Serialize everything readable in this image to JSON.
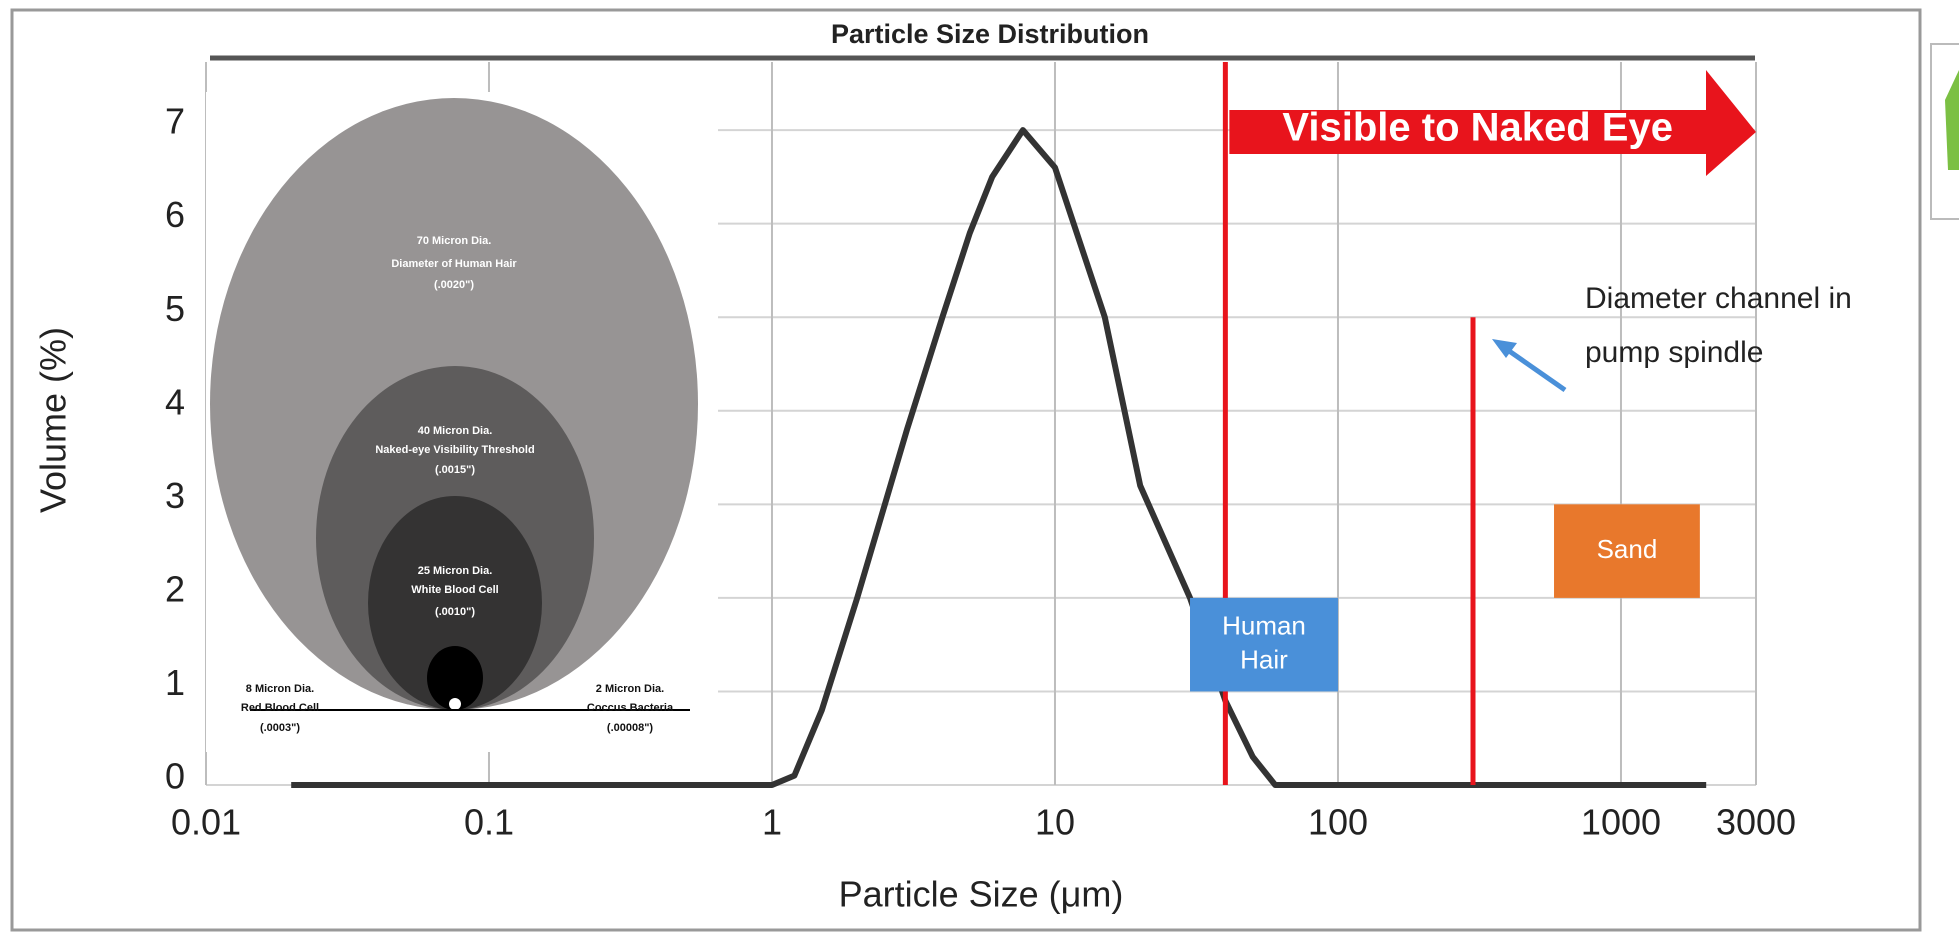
{
  "chart_data": {
    "type": "line",
    "title": "Particle Size Distribution",
    "x_label": "Particle Size (μm)",
    "y_label": "Volume (%)",
    "x_scale": "log",
    "xlim": [
      0.01,
      3000
    ],
    "ylim": [
      0,
      7.6
    ],
    "xticks": [
      0.01,
      0.1,
      1,
      10,
      100,
      1000,
      3000
    ],
    "yticks": [
      0,
      1,
      2,
      3,
      4,
      5,
      6,
      7
    ],
    "grid": true,
    "x": [
      0.02,
      1,
      1.2,
      1.5,
      2,
      3,
      4,
      5,
      6,
      7.7,
      10,
      15,
      20,
      30,
      40,
      50,
      60,
      2000
    ],
    "series": [
      {
        "color": "#333333",
        "values": [
          0,
          0,
          0.1,
          0.8,
          2.0,
          3.8,
          5.0,
          5.9,
          6.5,
          7.0,
          6.6,
          5.0,
          3.2,
          2.0,
          0.9,
          0.3,
          0,
          0
        ]
      }
    ],
    "reference_lines": [
      {
        "x": 40,
        "color": "#e8141c"
      },
      {
        "x": 300,
        "y": 5,
        "color": "#e8141c"
      }
    ],
    "arrow": {
      "text": "Visible to Naked Eye",
      "x": [
        40,
        3000
      ],
      "color": "#e8141c"
    },
    "boxes": [
      {
        "lines": [
          "Human",
          "Hair"
        ],
        "x": [
          30,
          100
        ],
        "y": [
          1,
          2
        ],
        "color": "#4a90d9"
      },
      {
        "lines": [
          "Sand"
        ],
        "x": [
          580,
          1900
        ],
        "y": [
          2,
          3
        ],
        "color": "#e8782c"
      }
    ],
    "annotation": {
      "lines": [
        "Diameter channel in",
        "pump spindle"
      ]
    }
  },
  "inset": {
    "circles": [
      {
        "lines": [
          "70 Micron Dia.",
          "Diameter of Human Hair",
          "(.0020\")"
        ]
      },
      {
        "lines": [
          "40 Micron Dia.",
          "Naked-eye Visibility Threshold",
          "(.0015\")"
        ]
      },
      {
        "lines": [
          "25 Micron Dia.",
          "White Blood Cell",
          "(.0010\")"
        ]
      },
      {
        "lines": [
          "8 Micron Dia.",
          "Red Blood Cell",
          "(.0003\")"
        ]
      },
      {
        "lines": [
          "2 Micron Dia.",
          "Coccus Bacteria",
          "(.00008\")"
        ]
      }
    ]
  }
}
